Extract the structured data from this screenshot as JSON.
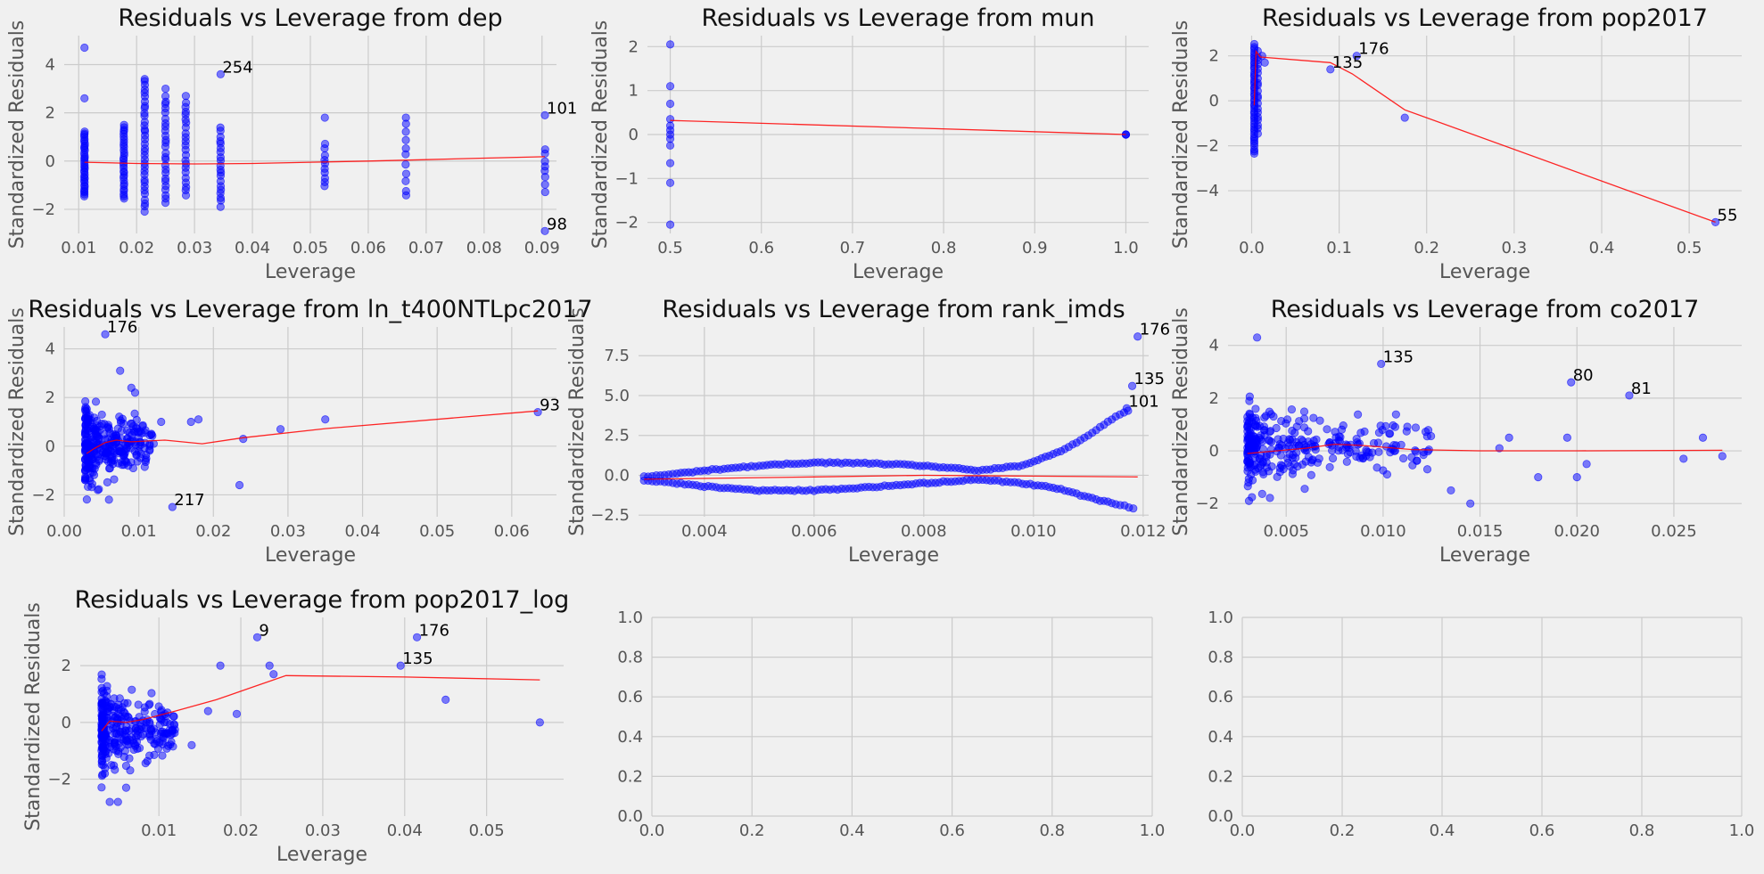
{
  "chart_data": [
    {
      "type": "scatter",
      "title": "Residuals vs Leverage from dep",
      "xlabel": "Leverage",
      "ylabel": "Standardized Residuals",
      "xlim": [
        0.0075,
        0.0925
      ],
      "ylim": [
        -3.0,
        5.2
      ],
      "xticks": [
        0.01,
        0.02,
        0.03,
        0.04,
        0.05,
        0.06,
        0.07,
        0.08,
        0.09
      ],
      "xtick_labels": [
        "0.01",
        "0.02",
        "0.03",
        "0.04",
        "0.05",
        "0.06",
        "0.07",
        "0.08",
        "0.09"
      ],
      "yticks": [
        -2,
        0,
        2,
        4
      ],
      "ytick_labels": [
        "−2",
        "0",
        "2",
        "4"
      ],
      "grid": true,
      "columns": [
        {
          "x": 0.011,
          "ymin": -1.5,
          "ymax": 1.3,
          "n": 34
        },
        {
          "x": 0.0178,
          "ymin": -1.6,
          "ymax": 1.6,
          "n": 30
        },
        {
          "x": 0.0214,
          "ymin": -2.1,
          "ymax": 3.4,
          "n": 34
        },
        {
          "x": 0.025,
          "ymin": -1.8,
          "ymax": 2.8,
          "n": 26
        },
        {
          "x": 0.0285,
          "ymin": -1.5,
          "ymax": 2.6,
          "n": 22
        },
        {
          "x": 0.0345,
          "ymin": -1.9,
          "ymax": 1.5,
          "n": 20
        },
        {
          "x": 0.0525,
          "ymin": -1.1,
          "ymax": 0.8,
          "n": 10
        },
        {
          "x": 0.0665,
          "ymin": -1.6,
          "ymax": 1.8,
          "n": 10
        },
        {
          "x": 0.0905,
          "ymin": -1.3,
          "ymax": 0.7,
          "n": 8
        }
      ],
      "points": [
        [
          0.011,
          4.7
        ],
        [
          0.011,
          2.6
        ],
        [
          0.0214,
          3.4
        ],
        [
          0.025,
          3.0
        ],
        [
          0.0285,
          2.7
        ],
        [
          0.0345,
          3.6
        ],
        [
          0.0525,
          1.8
        ],
        [
          0.0665,
          1.8
        ],
        [
          0.0905,
          1.9
        ],
        [
          0.0905,
          -2.9
        ]
      ],
      "lowess": [
        [
          0.011,
          -0.05
        ],
        [
          0.02,
          -0.1
        ],
        [
          0.03,
          -0.12
        ],
        [
          0.04,
          -0.1
        ],
        [
          0.05,
          -0.05
        ],
        [
          0.06,
          0.0
        ],
        [
          0.07,
          0.06
        ],
        [
          0.08,
          0.12
        ],
        [
          0.0905,
          0.18
        ]
      ],
      "annotations": [
        {
          "text": "254",
          "x": 0.0345,
          "y": 3.6
        },
        {
          "text": "101",
          "x": 0.0905,
          "y": 1.9
        },
        {
          "text": "98",
          "x": 0.0905,
          "y": -2.9
        }
      ]
    },
    {
      "type": "scatter",
      "title": "Residuals vs Leverage from mun",
      "xlabel": "Leverage",
      "ylabel": "Standardized Residuals",
      "xlim": [
        0.475,
        1.025
      ],
      "ylim": [
        -2.25,
        2.25
      ],
      "xticks": [
        0.5,
        0.6,
        0.7,
        0.8,
        0.9,
        1.0
      ],
      "xtick_labels": [
        "0.5",
        "0.6",
        "0.7",
        "0.8",
        "0.9",
        "1.0"
      ],
      "yticks": [
        -2,
        -1,
        0,
        1,
        2
      ],
      "ytick_labels": [
        "−2",
        "−1",
        "0",
        "1",
        "2"
      ],
      "grid": true,
      "points": [
        [
          0.5,
          2.05
        ],
        [
          0.5,
          1.1
        ],
        [
          0.5,
          0.7
        ],
        [
          0.5,
          0.35
        ],
        [
          0.5,
          0.2
        ],
        [
          0.5,
          0.1
        ],
        [
          0.5,
          0.0
        ],
        [
          0.5,
          -0.1
        ],
        [
          0.5,
          -0.25
        ],
        [
          0.5,
          -0.65
        ],
        [
          0.5,
          -1.1
        ],
        [
          0.5,
          -2.05
        ],
        [
          1.0,
          0.0
        ],
        [
          1.0,
          0.0
        ],
        [
          1.0,
          0.0
        ]
      ],
      "lowess": [
        [
          0.5,
          0.32
        ],
        [
          1.0,
          0.0
        ]
      ],
      "annotations": []
    },
    {
      "type": "scatter",
      "title": "Residuals vs Leverage from pop2017",
      "xlabel": "Leverage",
      "ylabel": "Standardized Residuals",
      "xlim": [
        -0.027,
        0.56
      ],
      "ylim": [
        -5.9,
        2.9
      ],
      "xticks": [
        0.0,
        0.1,
        0.2,
        0.3,
        0.4,
        0.5
      ],
      "xtick_labels": [
        "0.0",
        "0.1",
        "0.2",
        "0.3",
        "0.4",
        "0.5"
      ],
      "yticks": [
        -4,
        -2,
        0,
        2
      ],
      "ytick_labels": [
        "−4",
        "−2",
        "0",
        "2"
      ],
      "grid": true,
      "columns": [
        {
          "x": 0.003,
          "ymin": -2.4,
          "ymax": 2.6,
          "n": 45
        },
        {
          "x": 0.007,
          "ymin": -1.5,
          "ymax": 2.3,
          "n": 20
        }
      ],
      "points": [
        [
          0.012,
          2.0
        ],
        [
          0.015,
          1.7
        ],
        [
          0.09,
          1.4
        ],
        [
          0.12,
          2.0
        ],
        [
          0.175,
          -0.75
        ],
        [
          0.53,
          -5.4
        ]
      ],
      "lowess": [
        [
          0.003,
          -0.2
        ],
        [
          0.005,
          2.2
        ],
        [
          0.01,
          1.95
        ],
        [
          0.09,
          1.7
        ],
        [
          0.115,
          1.2
        ],
        [
          0.175,
          -0.4
        ],
        [
          0.53,
          -5.4
        ]
      ],
      "annotations": [
        {
          "text": "176",
          "x": 0.12,
          "y": 2.0
        },
        {
          "text": "135",
          "x": 0.09,
          "y": 1.4
        },
        {
          "text": "55",
          "x": 0.53,
          "y": -5.4
        }
      ]
    },
    {
      "type": "scatter",
      "title": "Residuals vs Leverage from ln_t400NTLpc2017",
      "xlabel": "Leverage",
      "ylabel": "Standardized Residuals",
      "xlim": [
        0.0,
        0.066
      ],
      "ylim": [
        -2.9,
        4.9
      ],
      "xticks": [
        0.0,
        0.01,
        0.02,
        0.03,
        0.04,
        0.05,
        0.06
      ],
      "xtick_labels": [
        "0.00",
        "0.01",
        "0.02",
        "0.03",
        "0.04",
        "0.05",
        "0.06"
      ],
      "yticks": [
        -2,
        0,
        2,
        4
      ],
      "ytick_labels": [
        "−2",
        "0",
        "2",
        "4"
      ],
      "grid": true,
      "cloud": {
        "xmin": 0.0028,
        "xmax": 0.012,
        "ymin": -2.3,
        "ymax": 2.6,
        "n": 300
      },
      "points": [
        [
          0.0055,
          4.6
        ],
        [
          0.0075,
          3.1
        ],
        [
          0.009,
          2.4
        ],
        [
          0.0095,
          2.2
        ],
        [
          0.013,
          1.0
        ],
        [
          0.017,
          1.0
        ],
        [
          0.018,
          1.1
        ],
        [
          0.0235,
          -1.6
        ],
        [
          0.024,
          0.3
        ],
        [
          0.029,
          0.7
        ],
        [
          0.035,
          1.1
        ],
        [
          0.0145,
          -2.5
        ],
        [
          0.0635,
          1.4
        ],
        [
          0.011,
          -0.5
        ],
        [
          0.012,
          0.1
        ],
        [
          0.0045,
          -1.8
        ],
        [
          0.006,
          -2.2
        ]
      ],
      "lowess": [
        [
          0.003,
          -0.3
        ],
        [
          0.004,
          -0.1
        ],
        [
          0.0055,
          0.15
        ],
        [
          0.007,
          0.25
        ],
        [
          0.009,
          0.18
        ],
        [
          0.0135,
          0.25
        ],
        [
          0.0185,
          0.1
        ],
        [
          0.024,
          0.35
        ],
        [
          0.035,
          0.72
        ],
        [
          0.0635,
          1.45
        ]
      ],
      "annotations": [
        {
          "text": "176",
          "x": 0.0055,
          "y": 4.6
        },
        {
          "text": "93",
          "x": 0.0635,
          "y": 1.4
        },
        {
          "text": "217",
          "x": 0.0145,
          "y": -2.5
        }
      ]
    },
    {
      "type": "scatter",
      "title": "Residuals vs Leverage from rank_imds",
      "xlabel": "Leverage",
      "ylabel": "Standardized Residuals",
      "xlim": [
        0.0028,
        0.0121
      ],
      "ylim": [
        -2.6,
        9.3
      ],
      "xticks": [
        0.004,
        0.006,
        0.008,
        0.01,
        0.012
      ],
      "xtick_labels": [
        "0.004",
        "0.006",
        "0.008",
        "0.010",
        "0.012"
      ],
      "yticks": [
        -2.5,
        0.0,
        2.5,
        5.0,
        7.5
      ],
      "ytick_labels": [
        "−2.5",
        "0.0",
        "2.5",
        "5.0",
        "7.5"
      ],
      "grid": true,
      "upper_branch": [
        [
          0.0029,
          -0.1
        ],
        [
          0.0035,
          0.1
        ],
        [
          0.004,
          0.3
        ],
        [
          0.005,
          0.6
        ],
        [
          0.006,
          0.8
        ],
        [
          0.007,
          0.75
        ],
        [
          0.008,
          0.6
        ],
        [
          0.009,
          0.3
        ],
        [
          0.0098,
          0.6
        ],
        [
          0.0105,
          1.5
        ],
        [
          0.011,
          2.5
        ],
        [
          0.0115,
          3.7
        ],
        [
          0.0118,
          4.2
        ]
      ],
      "lower_branch": [
        [
          0.0029,
          -0.3
        ],
        [
          0.0035,
          -0.5
        ],
        [
          0.004,
          -0.7
        ],
        [
          0.005,
          -0.95
        ],
        [
          0.006,
          -0.95
        ],
        [
          0.007,
          -0.75
        ],
        [
          0.008,
          -0.5
        ],
        [
          0.009,
          -0.25
        ],
        [
          0.0098,
          -0.5
        ],
        [
          0.0105,
          -0.85
        ],
        [
          0.011,
          -1.4
        ],
        [
          0.0115,
          -1.8
        ],
        [
          0.0119,
          -2.1
        ]
      ],
      "points": [
        [
          0.0119,
          8.7
        ],
        [
          0.0118,
          5.6
        ],
        [
          0.0117,
          4.2
        ]
      ],
      "lowess": [
        [
          0.0029,
          -0.25
        ],
        [
          0.004,
          -0.2
        ],
        [
          0.006,
          -0.1
        ],
        [
          0.008,
          0.0
        ],
        [
          0.01,
          -0.05
        ],
        [
          0.0119,
          -0.1
        ]
      ],
      "annotations": [
        {
          "text": "176",
          "x": 0.0119,
          "y": 8.7
        },
        {
          "text": "135",
          "x": 0.0118,
          "y": 5.6
        },
        {
          "text": "101",
          "x": 0.0117,
          "y": 4.2
        }
      ]
    },
    {
      "type": "scatter",
      "title": "Residuals vs Leverage from co2017",
      "xlabel": "Leverage",
      "ylabel": "Standardized Residuals",
      "xlim": [
        0.002,
        0.0285
      ],
      "ylim": [
        -2.5,
        4.7
      ],
      "xticks": [
        0.005,
        0.01,
        0.015,
        0.02,
        0.025
      ],
      "xtick_labels": [
        "0.005",
        "0.010",
        "0.015",
        "0.020",
        "0.025"
      ],
      "yticks": [
        -2,
        0,
        2,
        4
      ],
      "ytick_labels": [
        "−2",
        "0",
        "2",
        "4"
      ],
      "grid": true,
      "cloud": {
        "xmin": 0.003,
        "xmax": 0.0125,
        "ymin": -2.2,
        "ymax": 2.8,
        "n": 300
      },
      "points": [
        [
          0.0035,
          4.3
        ],
        [
          0.0099,
          3.3
        ],
        [
          0.0197,
          2.6
        ],
        [
          0.0227,
          2.1
        ],
        [
          0.0135,
          -1.5
        ],
        [
          0.0145,
          -2.0
        ],
        [
          0.0165,
          0.5
        ],
        [
          0.018,
          -1.0
        ],
        [
          0.0195,
          0.5
        ],
        [
          0.02,
          -1.0
        ],
        [
          0.0205,
          -0.5
        ],
        [
          0.0255,
          -0.3
        ],
        [
          0.0265,
          0.5
        ],
        [
          0.0275,
          -0.2
        ],
        [
          0.016,
          0.1
        ]
      ],
      "lowess": [
        [
          0.003,
          -0.1
        ],
        [
          0.006,
          0.1
        ],
        [
          0.0075,
          0.25
        ],
        [
          0.009,
          0.2
        ],
        [
          0.0115,
          0.05
        ],
        [
          0.015,
          0.0
        ],
        [
          0.02,
          0.0
        ],
        [
          0.0275,
          0.02
        ]
      ],
      "annotations": [
        {
          "text": "135",
          "x": 0.0099,
          "y": 3.3
        },
        {
          "text": "80",
          "x": 0.0197,
          "y": 2.6
        },
        {
          "text": "81",
          "x": 0.0227,
          "y": 2.1
        }
      ]
    },
    {
      "type": "scatter",
      "title": "Residuals vs Leverage from pop2017_log",
      "xlabel": "Leverage",
      "ylabel": "Standardized Residuals",
      "xlim": [
        0.0004,
        0.0594
      ],
      "ylim": [
        -3.3,
        3.7
      ],
      "xticks": [
        0.01,
        0.02,
        0.03,
        0.04,
        0.05
      ],
      "xtick_labels": [
        "0.01",
        "0.02",
        "0.03",
        "0.04",
        "0.05"
      ],
      "yticks": [
        -2,
        0,
        2
      ],
      "ytick_labels": [
        "−2",
        "0",
        "2"
      ],
      "grid": true,
      "cloud": {
        "xmin": 0.003,
        "xmax": 0.012,
        "ymin": -2.5,
        "ymax": 2.2,
        "n": 300
      },
      "points": [
        [
          0.022,
          3.0
        ],
        [
          0.0415,
          3.0
        ],
        [
          0.0395,
          2.0
        ],
        [
          0.045,
          0.8
        ],
        [
          0.0565,
          0.0
        ],
        [
          0.004,
          -2.8
        ],
        [
          0.005,
          -2.8
        ],
        [
          0.006,
          -2.3
        ],
        [
          0.0175,
          2.0
        ],
        [
          0.0195,
          0.3
        ],
        [
          0.024,
          1.7
        ],
        [
          0.0235,
          2.0
        ],
        [
          0.016,
          0.4
        ],
        [
          0.014,
          -0.8
        ]
      ],
      "lowess": [
        [
          0.003,
          -0.3
        ],
        [
          0.004,
          0.05
        ],
        [
          0.006,
          0.0
        ],
        [
          0.008,
          0.1
        ],
        [
          0.012,
          0.4
        ],
        [
          0.017,
          0.8
        ],
        [
          0.021,
          1.2
        ],
        [
          0.0255,
          1.65
        ],
        [
          0.04,
          1.6
        ],
        [
          0.0565,
          1.5
        ]
      ],
      "annotations": [
        {
          "text": "9",
          "x": 0.022,
          "y": 3.0
        },
        {
          "text": "176",
          "x": 0.0415,
          "y": 3.0
        },
        {
          "text": "135",
          "x": 0.0395,
          "y": 2.0
        }
      ]
    },
    {
      "type": "scatter",
      "title": "",
      "xlabel": "",
      "ylabel": "",
      "xlim": [
        0,
        1
      ],
      "ylim": [
        0,
        1
      ],
      "xticks": [
        0.0,
        0.2,
        0.4,
        0.6,
        0.8,
        1.0
      ],
      "xtick_labels": [
        "0.0",
        "0.2",
        "0.4",
        "0.6",
        "0.8",
        "1.0"
      ],
      "yticks": [
        0.0,
        0.2,
        0.4,
        0.6,
        0.8,
        1.0
      ],
      "ytick_labels": [
        "0.0",
        "0.2",
        "0.4",
        "0.6",
        "0.8",
        "1.0"
      ],
      "grid": true,
      "points": [],
      "lowess": [],
      "annotations": []
    },
    {
      "type": "scatter",
      "title": "",
      "xlabel": "",
      "ylabel": "",
      "xlim": [
        0,
        1
      ],
      "ylim": [
        0,
        1
      ],
      "xticks": [
        0.0,
        0.2,
        0.4,
        0.6,
        0.8,
        1.0
      ],
      "xtick_labels": [
        "0.0",
        "0.2",
        "0.4",
        "0.6",
        "0.8",
        "1.0"
      ],
      "yticks": [
        0.0,
        0.2,
        0.4,
        0.6,
        0.8,
        1.0
      ],
      "ytick_labels": [
        "0.0",
        "0.2",
        "0.4",
        "0.6",
        "0.8",
        "1.0"
      ],
      "grid": true,
      "points": [],
      "lowess": [],
      "annotations": []
    }
  ],
  "colors": {
    "background": "#f0f0f0",
    "grid": "#cbcbcb",
    "points": "#0000ff",
    "lowess": "#ff0000",
    "text": "#555555"
  }
}
